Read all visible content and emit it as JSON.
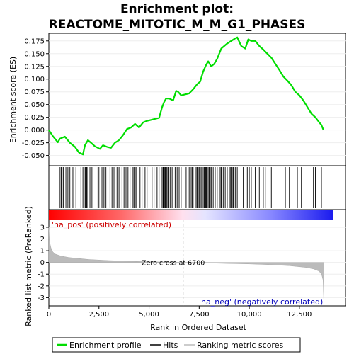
{
  "chart_data": {
    "type": "line",
    "title_line1": "Enrichment plot:",
    "title_line2": "REACTOME_MITOTIC_M_M_G1_PHASES",
    "panels": {
      "es": {
        "ylabel": "Enrichment score (ES)",
        "ylim": [
          -0.07,
          0.19
        ],
        "yticks": [
          -0.05,
          -0.025,
          0.0,
          0.025,
          0.05,
          0.075,
          0.1,
          0.125,
          0.15,
          0.175
        ],
        "ytick_labels": [
          "-0.050",
          "-0.025",
          "0.000",
          "0.025",
          "0.050",
          "0.075",
          "0.100",
          "0.125",
          "0.150",
          "0.175"
        ],
        "series": {
          "name": "Enrichment profile",
          "color": "#00dd00",
          "x": [
            0,
            200,
            450,
            550,
            800,
            1050,
            1300,
            1500,
            1700,
            1800,
            1950,
            2100,
            2300,
            2550,
            2700,
            2900,
            3100,
            3300,
            3500,
            3700,
            3900,
            4100,
            4300,
            4500,
            4700,
            4900,
            5100,
            5300,
            5500,
            5650,
            5750,
            5850,
            6000,
            6200,
            6350,
            6450,
            6600,
            6800,
            7000,
            7200,
            7400,
            7550,
            7700,
            7850,
            7950,
            8100,
            8250,
            8400,
            8600,
            8750,
            8900,
            9100,
            9300,
            9400,
            9600,
            9800,
            9950,
            10100,
            10300,
            10500,
            10700,
            10900,
            11100,
            11300,
            11500,
            11700,
            11900,
            12100,
            12300,
            12500,
            12700,
            12900,
            13100,
            13300,
            13450,
            13600,
            13700
          ],
          "y": [
            0.0,
            -0.012,
            -0.024,
            -0.017,
            -0.013,
            -0.025,
            -0.033,
            -0.044,
            -0.048,
            -0.03,
            -0.02,
            -0.025,
            -0.032,
            -0.037,
            -0.03,
            -0.033,
            -0.035,
            -0.025,
            -0.02,
            -0.01,
            0.002,
            0.005,
            0.012,
            0.005,
            0.015,
            0.018,
            0.02,
            0.022,
            0.024,
            0.045,
            0.055,
            0.062,
            0.062,
            0.058,
            0.077,
            0.075,
            0.068,
            0.07,
            0.072,
            0.08,
            0.09,
            0.095,
            0.115,
            0.128,
            0.135,
            0.125,
            0.13,
            0.14,
            0.16,
            0.165,
            0.17,
            0.175,
            0.18,
            0.182,
            0.165,
            0.16,
            0.178,
            0.175,
            0.175,
            0.165,
            0.158,
            0.15,
            0.142,
            0.13,
            0.118,
            0.105,
            0.097,
            0.088,
            0.075,
            0.068,
            0.058,
            0.045,
            0.032,
            0.025,
            0.017,
            0.01,
            0.0
          ]
        },
        "hits": [
          300,
          560,
          620,
          660,
          720,
          850,
          950,
          1050,
          1200,
          1350,
          1600,
          1700,
          1760,
          1820,
          1870,
          1900,
          1950,
          2050,
          2150,
          2350,
          2450,
          2500,
          2650,
          2750,
          2850,
          2950,
          3050,
          3150,
          3250,
          3400,
          3500,
          3650,
          3750,
          3850,
          3950,
          4050,
          4150,
          4200,
          4250,
          4300,
          4350,
          4550,
          4650,
          4800,
          4900,
          5000,
          5150,
          5250,
          5400,
          5500,
          5600,
          5650,
          5700,
          5720,
          5760,
          5800,
          5830,
          5860,
          5900,
          5950,
          6050,
          6150,
          6300,
          6400,
          6500,
          6600,
          6850,
          7000,
          7100,
          7150,
          7200,
          7300,
          7350,
          7400,
          7450,
          7500,
          7550,
          7600,
          7650,
          7700,
          7750,
          7780,
          7800,
          7830,
          7860,
          7900,
          7950,
          8000,
          8050,
          8100,
          8200,
          8300,
          8400,
          8500,
          8550,
          8600,
          8700,
          8800,
          8900,
          9000,
          9050,
          9100,
          9150,
          9200,
          9300,
          9400,
          9700,
          9900,
          10000,
          10100,
          10300,
          10500,
          10700,
          10800,
          11100,
          11800,
          12000,
          12400,
          12600,
          13200,
          13300,
          13600
        ]
      },
      "metric": {
        "ylabel": "Ranked list metric (PreRanked)",
        "xlabel": "Rank in Ordered Dataset",
        "ylim": [
          -3.7,
          3.6
        ],
        "yticks": [
          -3,
          -2,
          -1,
          0,
          1,
          2,
          3
        ],
        "ytick_labels": [
          "-3",
          "-2",
          "-1",
          "0",
          "1",
          "2",
          "3"
        ],
        "xlim": [
          0,
          14800
        ],
        "xticks": [
          0,
          2500,
          5000,
          7500,
          10000,
          12500
        ],
        "xtick_labels": [
          "0",
          "2,500",
          "5,000",
          "7,500",
          "10,000",
          "12,500"
        ],
        "zero_cross": 6700,
        "zero_cross_label": "Zero cross at 6700",
        "pos_label": "'na_pos' (positively correlated)",
        "neg_label": "'na_neg' (negatively correlated)",
        "curve_x": [
          0,
          30,
          80,
          150,
          300,
          600,
          1000,
          2000,
          3000,
          4000,
          5000,
          6000,
          6700,
          8000,
          9000,
          10000,
          11000,
          12000,
          12800,
          13200,
          13450,
          13600,
          13680,
          13720
        ],
        "curve_y": [
          3.0,
          1.9,
          1.4,
          1.0,
          0.72,
          0.55,
          0.42,
          0.25,
          0.16,
          0.1,
          0.06,
          0.03,
          0.0,
          -0.05,
          -0.09,
          -0.13,
          -0.19,
          -0.28,
          -0.42,
          -0.55,
          -0.72,
          -0.95,
          -1.5,
          -3.4
        ]
      }
    },
    "legend": {
      "items": [
        {
          "label": "Enrichment profile",
          "color": "#00dd00"
        },
        {
          "label": "Hits",
          "color": "#000000"
        },
        {
          "label": "Ranking metric scores",
          "color": "#bbbbbb"
        }
      ]
    },
    "colors": {
      "positive": "#ff0000",
      "negative": "#0000ff",
      "pos_text": "#cc0000",
      "neg_text": "#0000bb",
      "metric_fill": "#bbbbbb"
    }
  }
}
